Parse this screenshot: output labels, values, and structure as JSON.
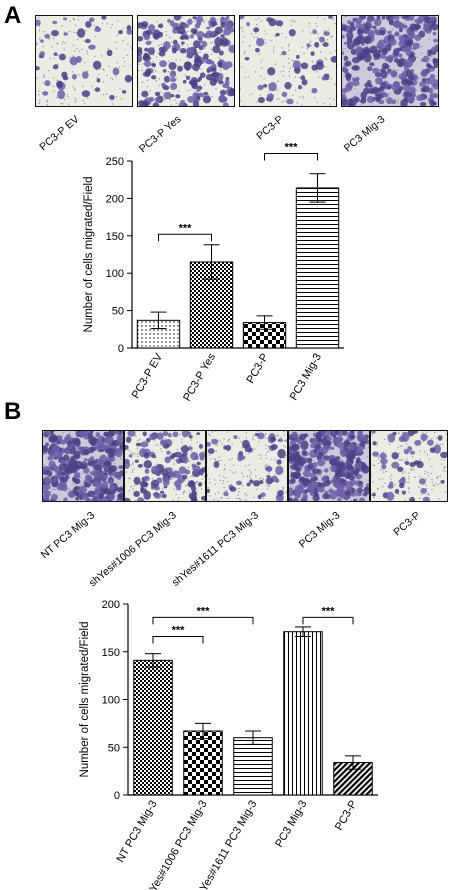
{
  "panels": {
    "a": {
      "letter": "A",
      "images": [
        {
          "label": "PC3-P EV",
          "density": "sparse"
        },
        {
          "label": "PC3-P Yes",
          "density": "dense"
        },
        {
          "label": "PC3-P",
          "density": "sparse"
        },
        {
          "label": "PC3 Mig-3",
          "density": "very-dense"
        }
      ]
    },
    "b": {
      "letter": "B",
      "images": [
        {
          "label": "NT PC3 Mig-3",
          "density": "very-dense"
        },
        {
          "label": "shYes#1006 PC3 Mig-3",
          "density": "medium"
        },
        {
          "label": "shYes#1611 PC3 Mig-3",
          "density": "sparse"
        },
        {
          "label": "PC3 Mig-3",
          "density": "very-dense"
        },
        {
          "label": "PC3-P",
          "density": "sparse"
        }
      ]
    }
  },
  "chart_data": [
    {
      "type": "bar",
      "ylabel": "Number of cells migrated/Field",
      "ylim": [
        0,
        250
      ],
      "yticks": [
        0,
        50,
        100,
        150,
        200,
        250
      ],
      "categories": [
        "PC3-P EV",
        "PC3-P Yes",
        "PC3-P",
        "PC3 Mig-3"
      ],
      "values": [
        37,
        115,
        34,
        214
      ],
      "errors": [
        11,
        23,
        9,
        19
      ],
      "patterns": [
        "dots",
        "checker-fine",
        "checker",
        "hstripes"
      ],
      "significance": [
        {
          "from": 0,
          "to": 1,
          "label": "***",
          "y": 152
        },
        {
          "from": 2,
          "to": 3,
          "label": "***",
          "y": 260
        }
      ]
    },
    {
      "type": "bar",
      "ylabel": "Number of cells migrated/Field",
      "ylim": [
        0,
        200
      ],
      "yticks": [
        0,
        50,
        100,
        150,
        200
      ],
      "categories": [
        "NT PC3 Mig-3",
        "shYes#1006 PC3 Mig-3",
        "shYes#1611 PC3 Mig-3",
        "PC3 Mig-3",
        "PC3-P"
      ],
      "values": [
        141,
        67,
        60,
        171,
        34
      ],
      "errors": [
        7,
        8,
        7,
        5,
        7
      ],
      "patterns": [
        "checker-fine",
        "checker",
        "hstripes",
        "vstripes",
        "diag"
      ],
      "significance": [
        {
          "from": 0,
          "to": 1,
          "label": "***",
          "y": 166
        },
        {
          "from": 0,
          "to": 2,
          "label": "***",
          "y": 186
        },
        {
          "from": 3,
          "to": 4,
          "label": "***",
          "y": 186
        }
      ]
    }
  ]
}
